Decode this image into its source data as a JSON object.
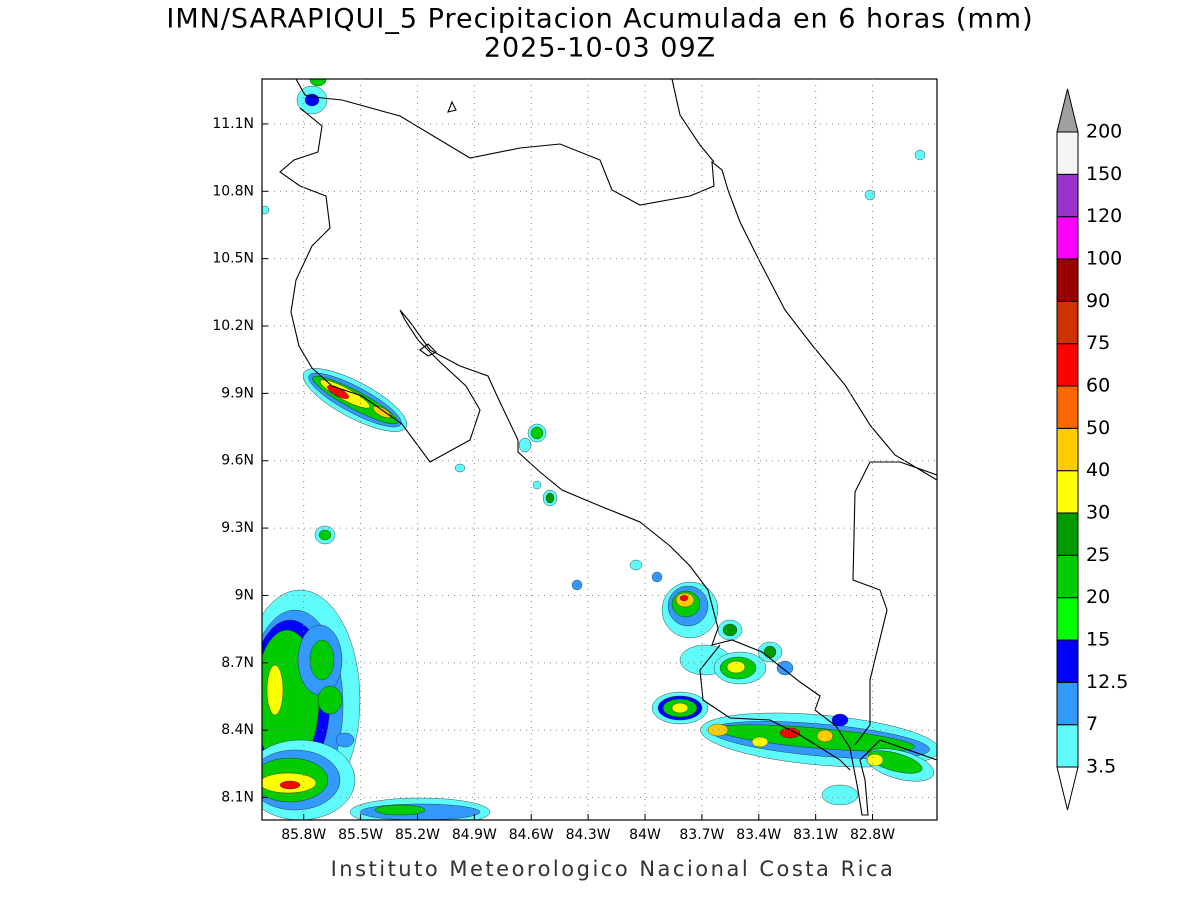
{
  "title": "IMN/SARAPIQUI_5 Precipitacion Acumulada en 6 horas (mm)",
  "subtitle": "2025-10-03 09Z",
  "footer": "Instituto Meteorologico Nacional Costa Rica",
  "map": {
    "lonlim": [
      -86.02,
      -82.46
    ],
    "latlim": [
      8.0,
      11.3
    ],
    "lonticks": [
      {
        "value": -85.8,
        "label": "85.8W"
      },
      {
        "value": -85.5,
        "label": "85.5W"
      },
      {
        "value": -85.2,
        "label": "85.2W"
      },
      {
        "value": -84.9,
        "label": "84.9W"
      },
      {
        "value": -84.6,
        "label": "84.6W"
      },
      {
        "value": -84.3,
        "label": "84.3W"
      },
      {
        "value": -84.0,
        "label": "84W"
      },
      {
        "value": -83.7,
        "label": "83.7W"
      },
      {
        "value": -83.4,
        "label": "83.4W"
      },
      {
        "value": -83.1,
        "label": "83.1W"
      },
      {
        "value": -82.8,
        "label": "82.8W"
      }
    ],
    "latticks": [
      {
        "value": 8.1,
        "label": "8.1N"
      },
      {
        "value": 8.4,
        "label": "8.4N"
      },
      {
        "value": 8.7,
        "label": "8.7N"
      },
      {
        "value": 9.0,
        "label": "9N"
      },
      {
        "value": 9.3,
        "label": "9.3N"
      },
      {
        "value": 9.6,
        "label": "9.6N"
      },
      {
        "value": 9.9,
        "label": "9.9N"
      },
      {
        "value": 10.2,
        "label": "10.2N"
      },
      {
        "value": 10.5,
        "label": "10.5N"
      },
      {
        "value": 10.8,
        "label": "10.8N"
      },
      {
        "value": 11.1,
        "label": "11.1N"
      }
    ],
    "grid": true
  },
  "colorbar": {
    "levels": [
      3.5,
      7,
      12.5,
      15,
      20,
      25,
      30,
      40,
      50,
      60,
      75,
      90,
      100,
      120,
      150,
      200
    ],
    "colors": [
      "#5ffbfb",
      "#3399ff",
      "#0000ff",
      "#00ff00",
      "#00cc00",
      "#009900",
      "#ffff00",
      "#ffcc00",
      "#ff6600",
      "#ff0000",
      "#cc3300",
      "#990000",
      "#ff00ff",
      "#9933cc",
      "#f5f5f5"
    ],
    "under_color": "#ffffff",
    "over_color": "#a0a0a0"
  }
}
